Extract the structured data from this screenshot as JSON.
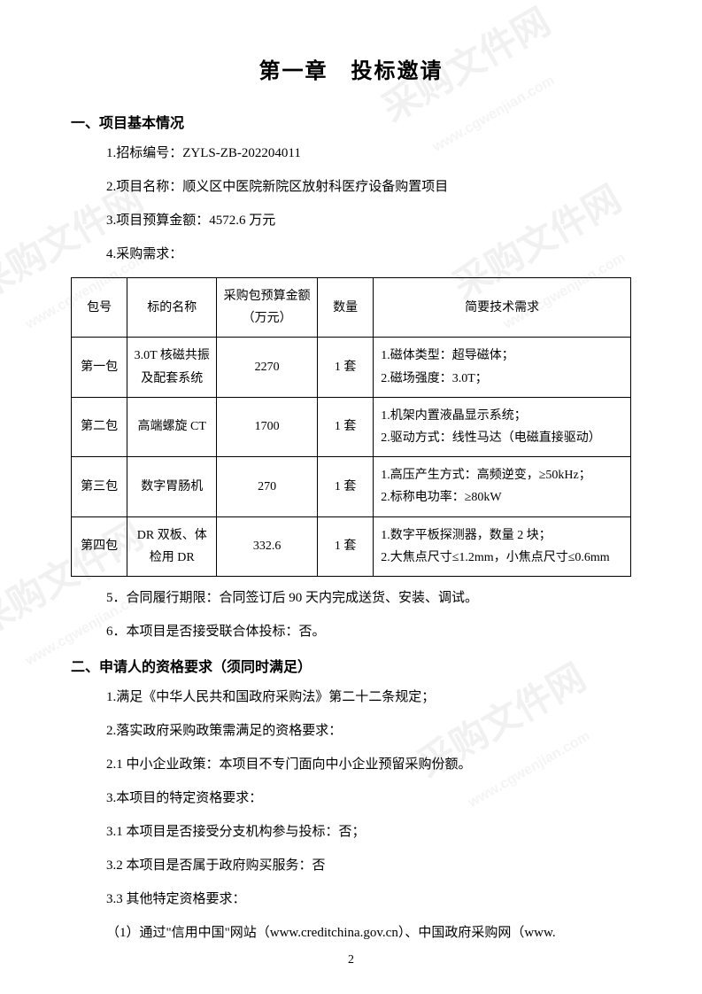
{
  "chapter_title": "第一章　投标邀请",
  "section1": {
    "heading": "一、项目基本情况",
    "item1": "1.招标编号：ZYLS-ZB-202204011",
    "item2": "2.项目名称：顺义区中医院新院区放射科医疗设备购置项目",
    "item3": "3.项目预算金额：4572.6 万元",
    "item4": "4.采购需求：",
    "item5": "5．合同履行期限：合同签订后 90 天内完成送货、安装、调试。",
    "item6": "6．本项目是否接受联合体投标：否。"
  },
  "table": {
    "headers": {
      "pkg": "包号",
      "name": "标的名称",
      "budget": "采购包预算金额（万元）",
      "qty": "数量",
      "tech": "简要技术需求"
    },
    "rows": [
      {
        "pkg": "第一包",
        "name": "3.0T 核磁共振及配套系统",
        "budget": "2270",
        "qty": "1 套",
        "tech": "1.磁体类型：超导磁体；\n2.磁场强度：3.0T；"
      },
      {
        "pkg": "第二包",
        "name": "高端螺旋 CT",
        "budget": "1700",
        "qty": "1 套",
        "tech": "1.机架内置液晶显示系统；\n2.驱动方式：线性马达（电磁直接驱动）"
      },
      {
        "pkg": "第三包",
        "name": "数字胃肠机",
        "budget": "270",
        "qty": "1 套",
        "tech": "1.高压产生方式：高频逆变，≥50kHz；\n2.标称电功率：≥80kW"
      },
      {
        "pkg": "第四包",
        "name": "DR 双板、体检用 DR",
        "budget": "332.6",
        "qty": "1 套",
        "tech": "1.数字平板探测器，数量 2 块；\n2.大焦点尺寸≤1.2mm，小焦点尺寸≤0.6mm"
      }
    ]
  },
  "section2": {
    "heading": "二、申请人的资格要求（须同时满足）",
    "item1": "1.满足《中华人民共和国政府采购法》第二十二条规定；",
    "item2": "2.落实政府采购政策需满足的资格要求：",
    "item2_1": "2.1 中小企业政策：本项目不专门面向中小企业预留采购份额。",
    "item3": "3.本项目的特定资格要求：",
    "item3_1": "3.1 本项目是否接受分支机构参与投标：否；",
    "item3_2": "3.2 本项目是否属于政府购买服务：否",
    "item3_3": "3.3 其他特定资格要求：",
    "item3_3_1": "（1）通过\"信用中国\"网站（www.creditchina.gov.cn）、中国政府采购网（www."
  },
  "page_number": "2",
  "watermark_text": "采购文件网",
  "watermark_url": "www.cgwenjian.com"
}
